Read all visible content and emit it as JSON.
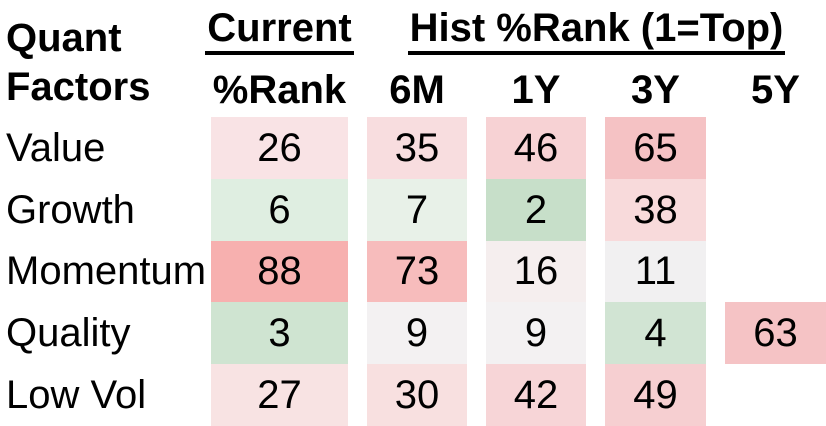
{
  "table": {
    "corner": {
      "line1": "Quant",
      "line2": "Factors"
    },
    "groups": {
      "current": {
        "label": "Current",
        "sub": "%Rank"
      },
      "hist": {
        "label": "Hist %Rank (1=Top)",
        "cols": [
          "6M",
          "1Y",
          "3Y",
          "5Y"
        ]
      }
    },
    "rows": [
      {
        "label": "Value",
        "cells": [
          {
            "v": "26",
            "c": "#f9e3e5"
          },
          {
            "v": "35",
            "c": "#f8dddf"
          },
          {
            "v": "46",
            "c": "#f7d2d4"
          },
          {
            "v": "65",
            "c": "#f5c2c4"
          },
          {
            "v": "",
            "c": "transparent"
          }
        ]
      },
      {
        "label": "Growth",
        "cells": [
          {
            "v": "6",
            "c": "#dfeee1"
          },
          {
            "v": "7",
            "c": "#e8f1e8"
          },
          {
            "v": "2",
            "c": "#c7dfc9"
          },
          {
            "v": "38",
            "c": "#f8dadb"
          },
          {
            "v": "",
            "c": "transparent"
          }
        ]
      },
      {
        "label": "Momentum",
        "cells": [
          {
            "v": "88",
            "c": "#f7b0af"
          },
          {
            "v": "73",
            "c": "#f7bcbc"
          },
          {
            "v": "16",
            "c": "#f5eeee"
          },
          {
            "v": "11",
            "c": "#f1f0f1"
          },
          {
            "v": "",
            "c": "transparent"
          }
        ]
      },
      {
        "label": "Quality",
        "cells": [
          {
            "v": "3",
            "c": "#cfe4d1"
          },
          {
            "v": "9",
            "c": "#f3f1f2"
          },
          {
            "v": "9",
            "c": "#f3f1f2"
          },
          {
            "v": "4",
            "c": "#d1e4d3"
          },
          {
            "v": "63",
            "c": "#f5c3c5"
          }
        ]
      },
      {
        "label": "Low Vol",
        "cells": [
          {
            "v": "27",
            "c": "#f8e3e3"
          },
          {
            "v": "30",
            "c": "#f8e0e0"
          },
          {
            "v": "42",
            "c": "#f7d5d7"
          },
          {
            "v": "49",
            "c": "#f6cfd1"
          },
          {
            "v": "",
            "c": "transparent"
          }
        ]
      }
    ]
  },
  "chart_data": {
    "type": "heatmap",
    "title": "Quant Factors %Rank (1=Top)",
    "row_labels": [
      "Value",
      "Growth",
      "Momentum",
      "Quality",
      "Low Vol"
    ],
    "col_labels": [
      "Current %Rank",
      "Hist 6M",
      "Hist 1Y",
      "Hist 3Y",
      "Hist 5Y"
    ],
    "values": [
      [
        26,
        35,
        46,
        65,
        null
      ],
      [
        6,
        7,
        2,
        38,
        null
      ],
      [
        88,
        73,
        16,
        11,
        null
      ],
      [
        3,
        9,
        9,
        4,
        63
      ],
      [
        27,
        30,
        42,
        49,
        null
      ]
    ],
    "scale_note": "1=Top; low ranks shaded green, high ranks shaded red, ~10 is white",
    "color_low": "#c7dfc9",
    "color_mid": "#f2f0f2",
    "color_high": "#f7b0af"
  }
}
